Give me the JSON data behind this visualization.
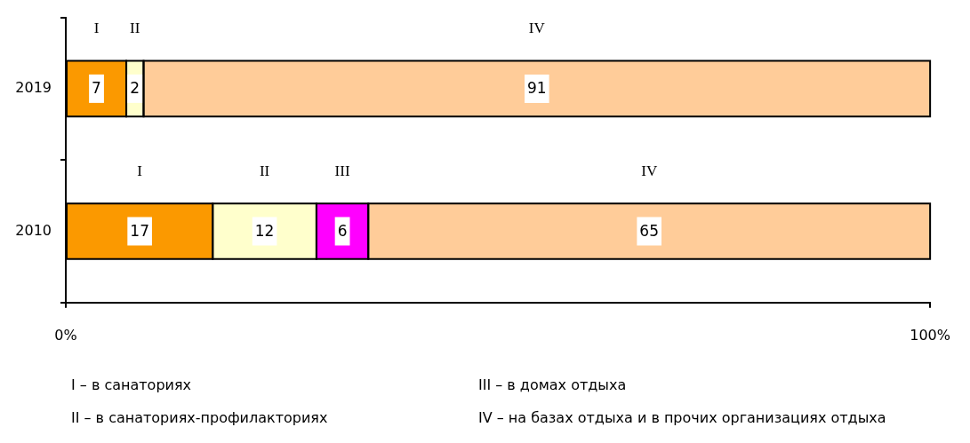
{
  "chart_data": {
    "type": "bar",
    "orientation": "horizontal",
    "stacked": true,
    "categories": [
      "2019",
      "2010"
    ],
    "series": [
      {
        "name": "I",
        "color": "#fb9900",
        "values": [
          7,
          17
        ]
      },
      {
        "name": "II",
        "color": "#ffffcc",
        "values": [
          2,
          12
        ]
      },
      {
        "name": "III",
        "color": "#ff00ff",
        "values": [
          null,
          6
        ]
      },
      {
        "name": "IV",
        "color": "#ffcc99",
        "values": [
          91,
          65
        ]
      }
    ],
    "xlim": [
      0,
      100
    ],
    "xticks": [
      {
        "value": 0,
        "label": "0%"
      },
      {
        "value": 100,
        "label": "100%"
      }
    ],
    "data_labels": true,
    "grid": false,
    "legend": false,
    "annotations": [
      "I  – в санаториях",
      "II – в санаториях-профилакториях",
      "III – в домах отдыха",
      "IV – на базах отдыха и в прочих организациях отдыха"
    ]
  }
}
